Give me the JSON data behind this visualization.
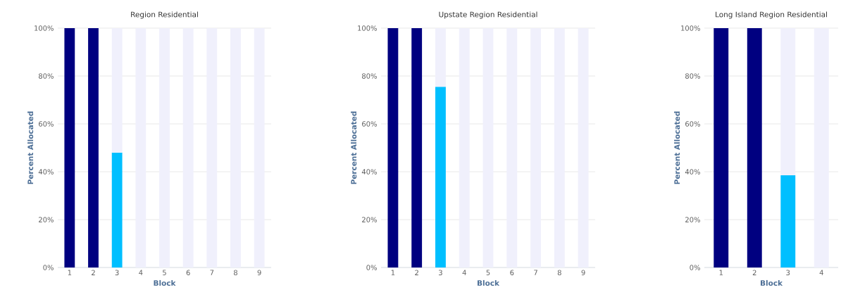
{
  "chart_data": [
    {
      "type": "bar",
      "title": "Region Residential",
      "xlabel": "Block",
      "ylabel": "Percent Allocated",
      "stacked": true,
      "grid": "y",
      "categories": [
        "1",
        "2",
        "3",
        "4",
        "5",
        "6",
        "7",
        "8",
        "9"
      ],
      "series": [
        {
          "colors": [
            "#000080",
            "#000080",
            "#00bfff",
            "#00bfff",
            "#00bfff",
            "#00bfff",
            "#00bfff",
            "#00bfff",
            "#00bfff"
          ],
          "values": [
            100,
            100,
            48,
            0,
            0,
            0,
            0,
            0,
            0
          ]
        },
        {
          "color": "#f0f0fc",
          "values": [
            0,
            0,
            52,
            100,
            100,
            100,
            100,
            100,
            100
          ]
        }
      ],
      "ylim": [
        0,
        100
      ],
      "yticks": [
        {
          "value": 0,
          "label": "0%"
        },
        {
          "value": 20,
          "label": "20%"
        },
        {
          "value": 40,
          "label": "40%"
        },
        {
          "value": 60,
          "label": "60%"
        },
        {
          "value": 80,
          "label": "80%"
        },
        {
          "value": 100,
          "label": "100%"
        }
      ]
    },
    {
      "type": "bar",
      "title": "Upstate Region Residential",
      "xlabel": "Block",
      "ylabel": "Percent Allocated",
      "stacked": true,
      "grid": "y",
      "categories": [
        "1",
        "2",
        "3",
        "4",
        "5",
        "6",
        "7",
        "8",
        "9"
      ],
      "series": [
        {
          "colors": [
            "#000080",
            "#000080",
            "#00bfff",
            "#00bfff",
            "#00bfff",
            "#00bfff",
            "#00bfff",
            "#00bfff",
            "#00bfff"
          ],
          "values": [
            100,
            100,
            75.5,
            0,
            0,
            0,
            0,
            0,
            0
          ]
        },
        {
          "color": "#f0f0fc",
          "values": [
            0,
            0,
            24.5,
            100,
            100,
            100,
            100,
            100,
            100
          ]
        }
      ],
      "ylim": [
        0,
        100
      ],
      "yticks": [
        {
          "value": 0,
          "label": "0%"
        },
        {
          "value": 20,
          "label": "20%"
        },
        {
          "value": 40,
          "label": "40%"
        },
        {
          "value": 60,
          "label": "60%"
        },
        {
          "value": 80,
          "label": "80%"
        },
        {
          "value": 100,
          "label": "100%"
        }
      ]
    },
    {
      "type": "bar",
      "title": "Long Island Region Residential",
      "xlabel": "Block",
      "ylabel": "Percent Allocated",
      "stacked": true,
      "grid": "y",
      "categories": [
        "1",
        "2",
        "3",
        "4"
      ],
      "series": [
        {
          "colors": [
            "#000080",
            "#000080",
            "#00bfff",
            "#00bfff"
          ],
          "values": [
            100,
            100,
            38.5,
            0
          ]
        },
        {
          "color": "#f0f0fc",
          "values": [
            0,
            0,
            61.5,
            100
          ]
        }
      ],
      "ylim": [
        0,
        100
      ],
      "yticks": [
        {
          "value": 0,
          "label": "0%"
        },
        {
          "value": 20,
          "label": "20%"
        },
        {
          "value": 40,
          "label": "40%"
        },
        {
          "value": 60,
          "label": "60%"
        },
        {
          "value": 80,
          "label": "80%"
        },
        {
          "value": 100,
          "label": "100%"
        }
      ]
    }
  ]
}
